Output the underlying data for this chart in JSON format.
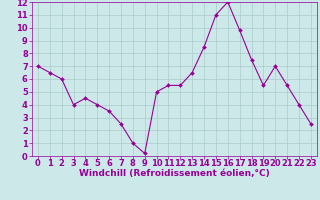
{
  "x": [
    0,
    1,
    2,
    3,
    4,
    5,
    6,
    7,
    8,
    9,
    10,
    11,
    12,
    13,
    14,
    15,
    16,
    17,
    18,
    19,
    20,
    21,
    22,
    23
  ],
  "y": [
    7.0,
    6.5,
    6.0,
    4.0,
    4.5,
    4.0,
    3.5,
    2.5,
    1.0,
    0.2,
    5.0,
    5.5,
    5.5,
    6.5,
    8.5,
    11.0,
    12.0,
    9.8,
    7.5,
    5.5,
    7.0,
    5.5,
    4.0,
    2.5
  ],
  "line_color": "#990099",
  "marker": "D",
  "marker_size": 2.0,
  "bg_color": "#cce8e8",
  "grid_color": "#aacccc",
  "xlabel": "Windchill (Refroidissement éolien,°C)",
  "xlabel_color": "#990099",
  "xlabel_fontsize": 6.5,
  "tick_color": "#990099",
  "tick_fontsize": 6,
  "ylim": [
    0,
    12
  ],
  "xlim": [
    -0.5,
    23.5
  ],
  "yticks": [
    0,
    1,
    2,
    3,
    4,
    5,
    6,
    7,
    8,
    9,
    10,
    11,
    12
  ],
  "xticks": [
    0,
    1,
    2,
    3,
    4,
    5,
    6,
    7,
    8,
    9,
    10,
    11,
    12,
    13,
    14,
    15,
    16,
    17,
    18,
    19,
    20,
    21,
    22,
    23
  ]
}
